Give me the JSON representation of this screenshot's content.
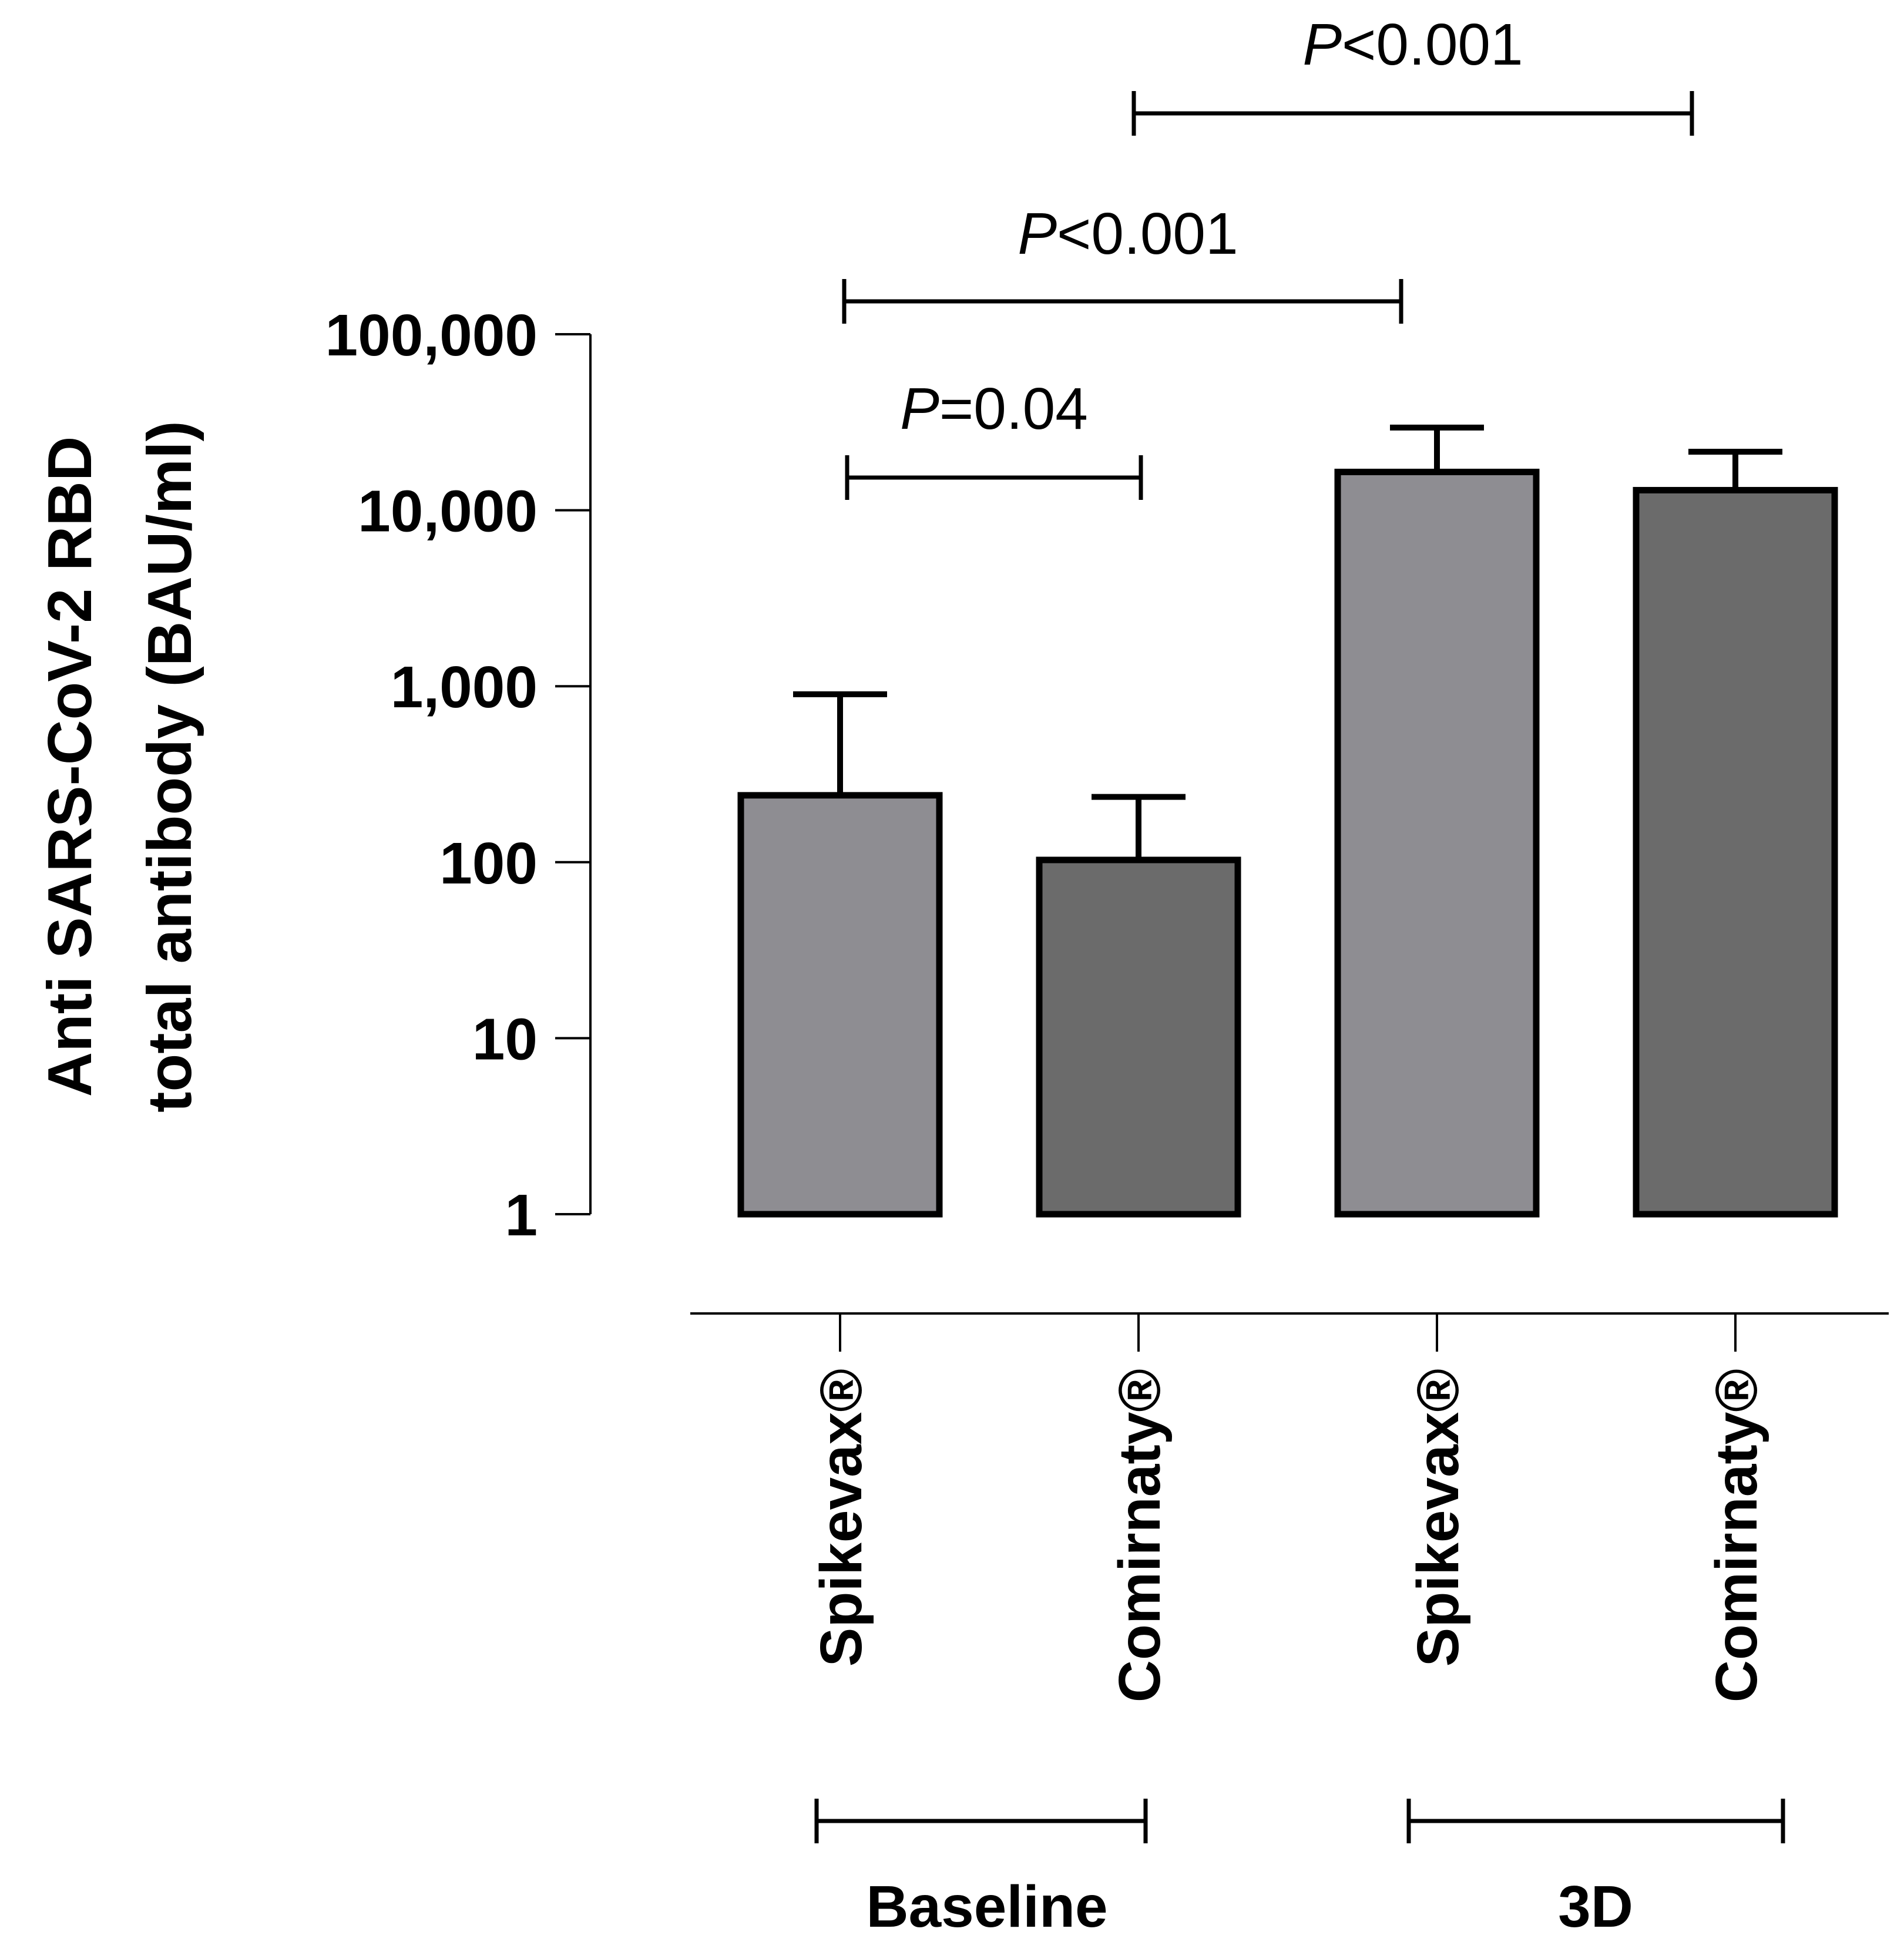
{
  "chart_data": {
    "type": "bar",
    "scale": "log",
    "y_title_line1": "Anti SARS-CoV-2 RBD",
    "y_title_line2": "total antibody (BAU/ml)",
    "ylim": [
      1,
      100000
    ],
    "yticks": [
      {
        "value": 1,
        "label": "1"
      },
      {
        "value": 10,
        "label": "10"
      },
      {
        "value": 100,
        "label": "100"
      },
      {
        "value": 1000,
        "label": "1,000"
      },
      {
        "value": 10000,
        "label": "10,000"
      },
      {
        "value": 100000,
        "label": "100,000"
      }
    ],
    "bars": [
      {
        "label": "Spikevax®",
        "group": "Baseline",
        "value": 240,
        "error_upper": 900,
        "color": "#8e8d92"
      },
      {
        "label": "Comirnaty®",
        "group": "Baseline",
        "value": 103,
        "error_upper": 235,
        "color": "#6b6b6b"
      },
      {
        "label": "Spikevax®",
        "group": "3D",
        "value": 16500,
        "error_upper": 29500,
        "color": "#8e8d92"
      },
      {
        "label": "Comirnaty®",
        "group": "3D",
        "value": 13000,
        "error_upper": 21500,
        "color": "#6b6b6b"
      }
    ],
    "groups": [
      {
        "name": "Baseline",
        "from": 0,
        "to": 1
      },
      {
        "name": "3D",
        "from": 2,
        "to": 3
      }
    ],
    "comparisons": [
      {
        "from": 0,
        "to": 1,
        "p_symbol": "P",
        "p_rest": "=0.04"
      },
      {
        "from": 0,
        "to": 2,
        "p_symbol": "P",
        "p_rest": "<0.001"
      },
      {
        "from": 1,
        "to": 3,
        "p_symbol": "P",
        "p_rest": "<0.001"
      }
    ]
  }
}
